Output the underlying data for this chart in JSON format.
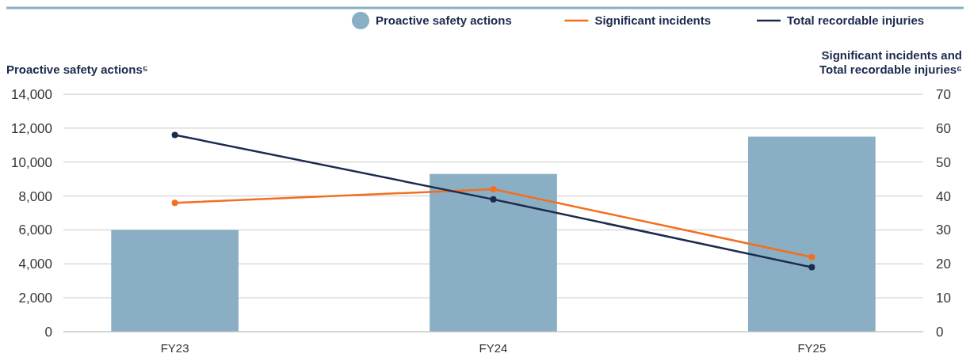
{
  "chart_data": {
    "type": "bar",
    "categories": [
      "FY23",
      "FY24",
      "FY25"
    ],
    "ylabel": "Proactive safety actions⁵",
    "y2label": "Significant incidents and Total recordable injuries⁶",
    "ylim": [
      0,
      14000
    ],
    "yticks": [
      {
        "value": 0,
        "label": "0"
      },
      {
        "value": 2000,
        "label": "2,000"
      },
      {
        "value": 4000,
        "label": "4,000"
      },
      {
        "value": 6000,
        "label": "6,000"
      },
      {
        "value": 8000,
        "label": "8,000"
      },
      {
        "value": 10000,
        "label": "10,000"
      },
      {
        "value": 12000,
        "label": "12,000"
      },
      {
        "value": 14000,
        "label": "14,000"
      }
    ],
    "y2lim": [
      0,
      70
    ],
    "y2ticks": [
      0,
      10,
      20,
      30,
      40,
      50,
      60,
      70
    ],
    "grid": "y",
    "legend": "top right",
    "marker": "circle",
    "series": [
      {
        "name": "Proactive safety actions",
        "color": "#8aafc4",
        "values": [
          6000,
          9300,
          11500
        ]
      },
      {
        "name": "Significant incidents",
        "type": "line",
        "axis": "y2",
        "color": "#f26f21",
        "values": [
          38,
          42,
          22
        ]
      },
      {
        "name": "Total recordable injuries",
        "type": "line",
        "axis": "y2",
        "color": "#1b2a4e",
        "values": [
          58,
          39,
          19
        ]
      }
    ]
  }
}
